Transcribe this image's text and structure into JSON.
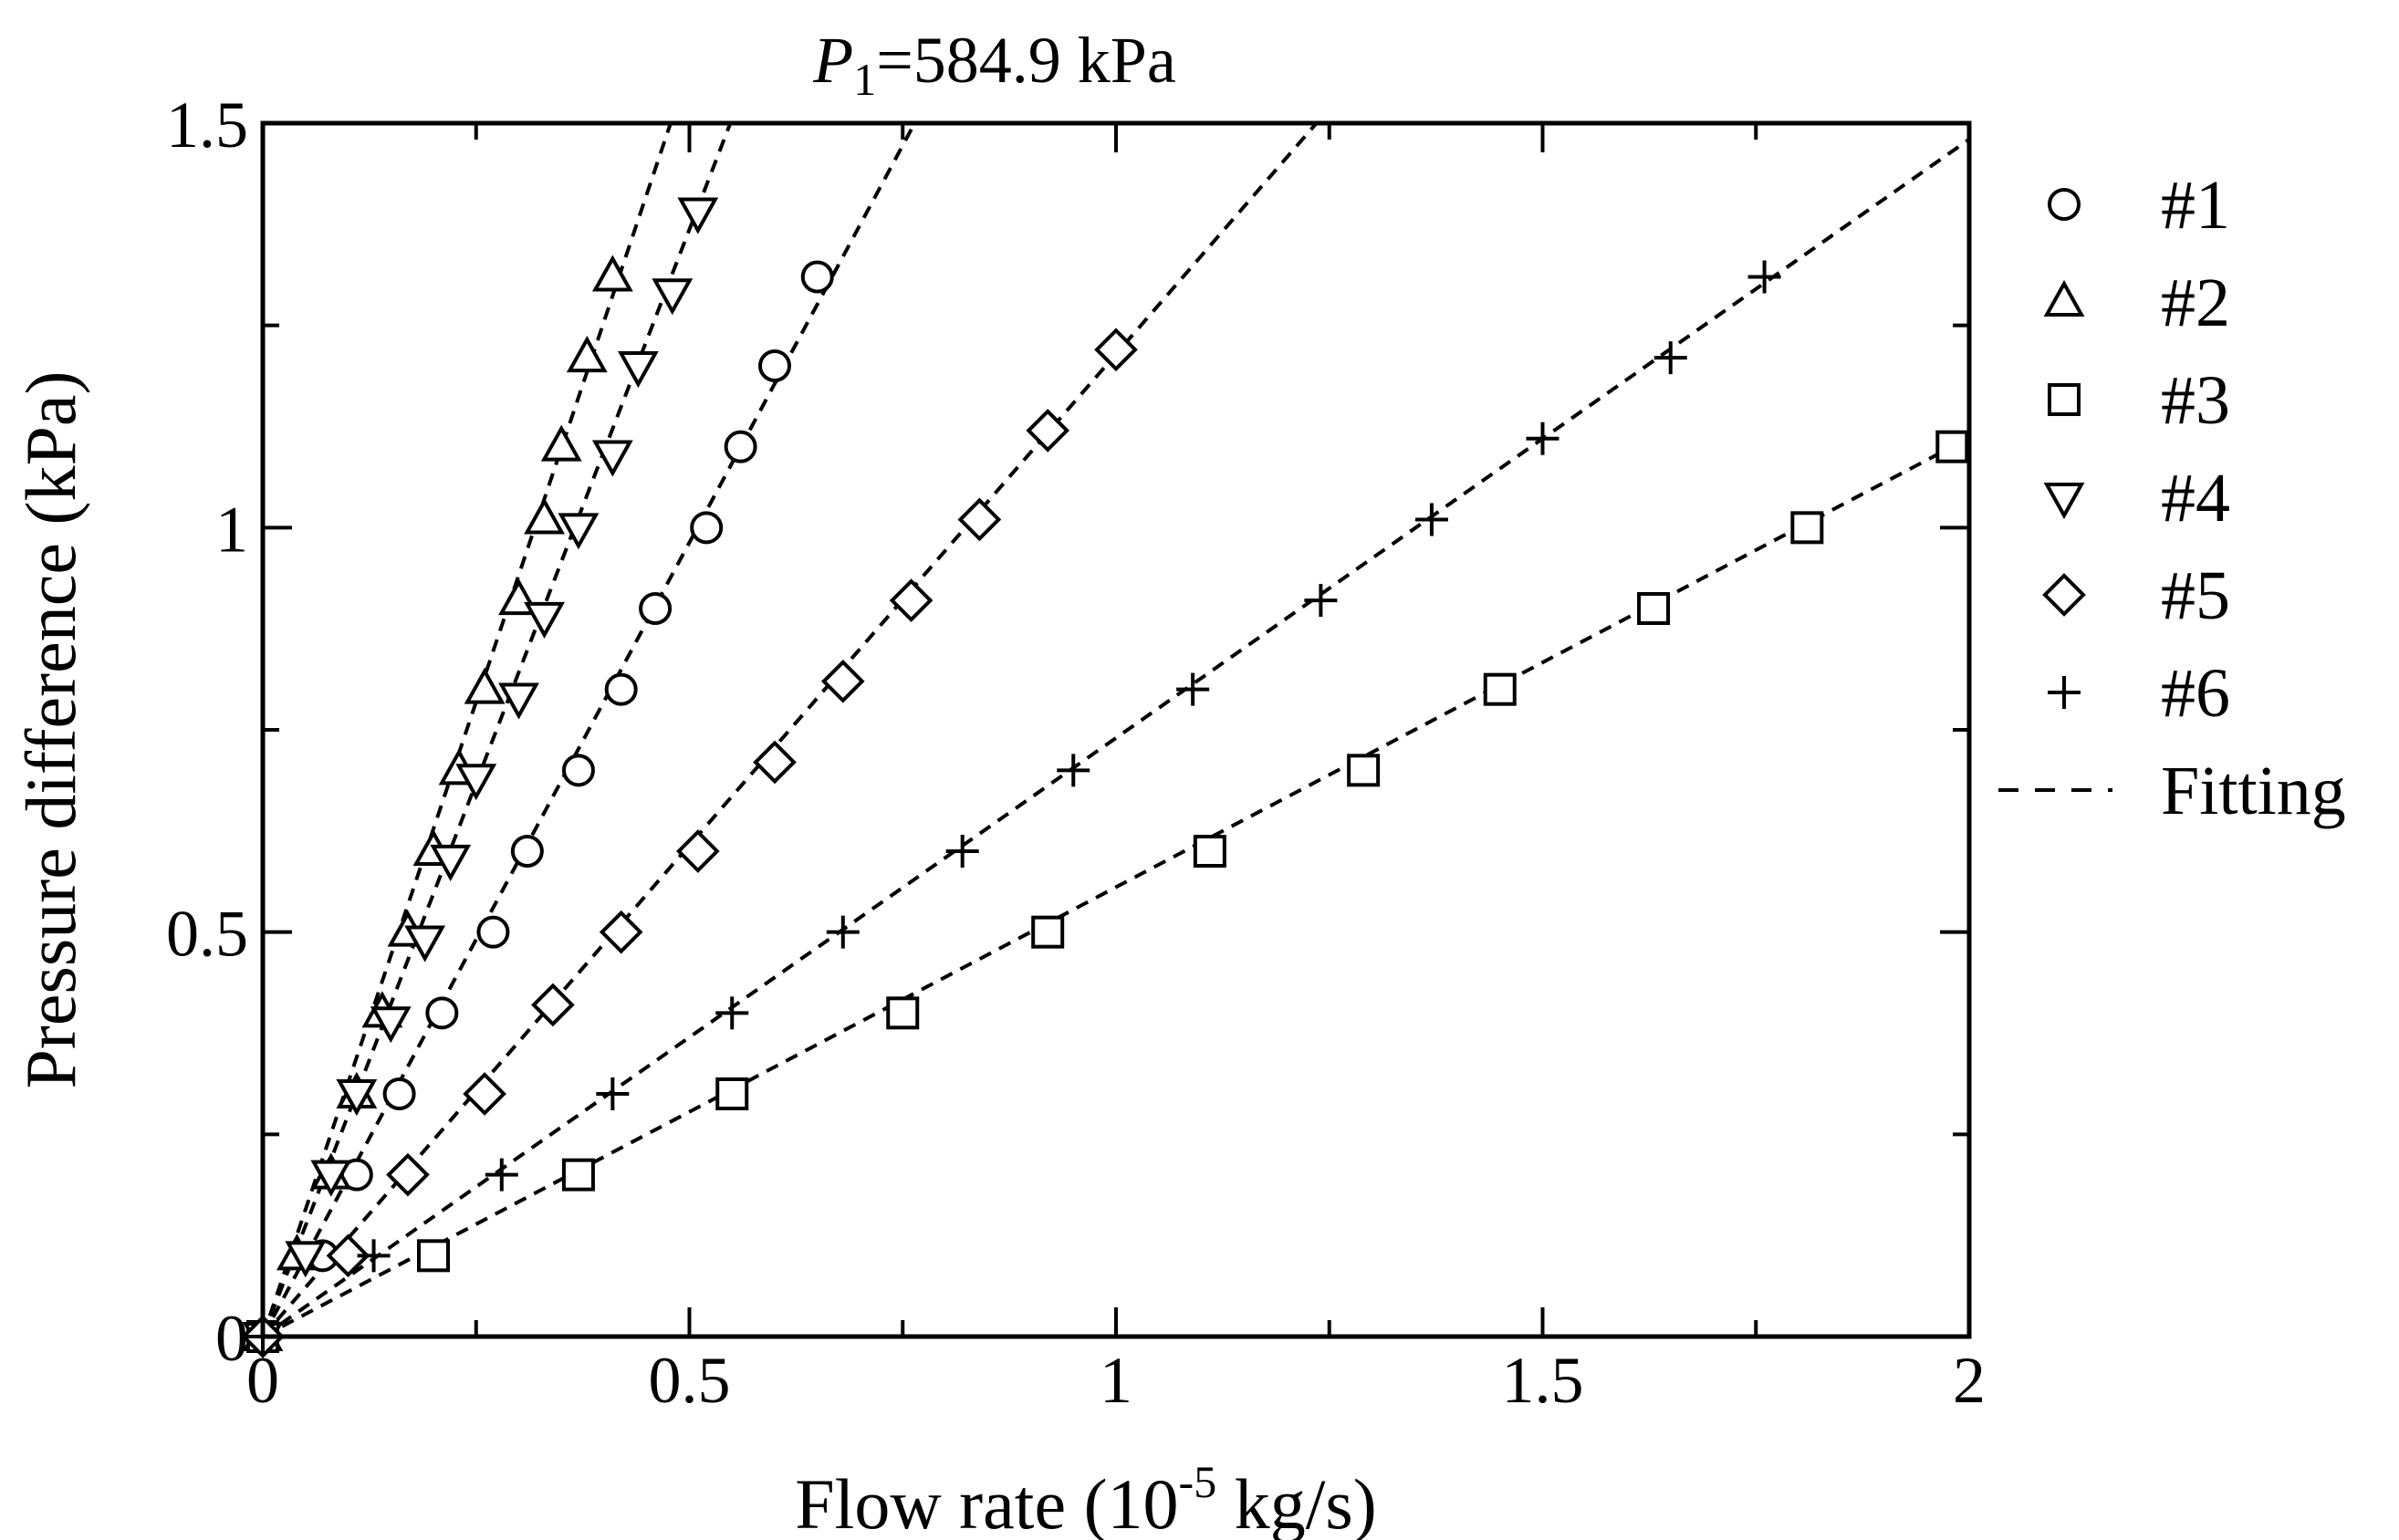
{
  "chart_data": {
    "type": "scatter",
    "title": {
      "symbol": "P",
      "subscript": "1",
      "text": "=584.9 kPa"
    },
    "xlabel": {
      "prefix": "Flow rate (10",
      "superscript": "-5",
      "suffix": " kg/s)"
    },
    "ylabel": "Pressure difference (kPa)",
    "xlim": [
      0,
      2
    ],
    "ylim": [
      0,
      1.5
    ],
    "xticks": [
      0,
      0.5,
      1,
      1.5,
      2
    ],
    "xtick_labels": [
      "0",
      "0.5",
      "1",
      "1.5",
      "2"
    ],
    "yticks": [
      0,
      0.5,
      1,
      1.5
    ],
    "ytick_labels": [
      "0",
      "0.5",
      "1",
      "1.5"
    ],
    "grid": false,
    "legend_position": "outside-right",
    "fitting_label": "Fitting",
    "series": [
      {
        "name": "#1",
        "marker": "circle",
        "x": [
          0,
          0.07,
          0.11,
          0.16,
          0.21,
          0.27,
          0.31,
          0.37,
          0.42,
          0.46,
          0.52,
          0.56,
          0.6,
          0.65
        ],
        "y": [
          0,
          0.1,
          0.2,
          0.3,
          0.4,
          0.5,
          0.6,
          0.7,
          0.8,
          0.9,
          1.0,
          1.1,
          1.2,
          1.31
        ],
        "fit": [
          [
            0,
            0
          ],
          [
            0.764,
            1.5
          ]
        ]
      },
      {
        "name": "#2",
        "marker": "triangle-up",
        "x": [
          0,
          0.04,
          0.08,
          0.11,
          0.14,
          0.17,
          0.2,
          0.23,
          0.26,
          0.3,
          0.33,
          0.35,
          0.38,
          0.41
        ],
        "y": [
          0,
          0.1,
          0.2,
          0.3,
          0.4,
          0.5,
          0.6,
          0.7,
          0.8,
          0.91,
          1.01,
          1.1,
          1.21,
          1.31
        ],
        "fit": [
          [
            0,
            0
          ],
          [
            0.478,
            1.5
          ]
        ]
      },
      {
        "name": "#3",
        "marker": "square",
        "x": [
          0,
          0.2,
          0.37,
          0.55,
          0.75,
          0.92,
          1.11,
          1.29,
          1.45,
          1.63,
          1.81,
          1.98
        ],
        "y": [
          0,
          0.1,
          0.2,
          0.3,
          0.4,
          0.5,
          0.6,
          0.7,
          0.8,
          0.9,
          1.0,
          1.1
        ],
        "fit": [
          [
            0,
            0
          ],
          [
            1.98,
            1.1
          ]
        ]
      },
      {
        "name": "#4",
        "marker": "triangle-down",
        "x": [
          0,
          0.05,
          0.08,
          0.11,
          0.15,
          0.19,
          0.22,
          0.25,
          0.3,
          0.33,
          0.37,
          0.41,
          0.44,
          0.48,
          0.51
        ],
        "y": [
          0,
          0.1,
          0.2,
          0.3,
          0.39,
          0.49,
          0.59,
          0.69,
          0.79,
          0.89,
          1.0,
          1.09,
          1.2,
          1.29,
          1.39
        ],
        "fit": [
          [
            0,
            0
          ],
          [
            0.548,
            1.5
          ]
        ]
      },
      {
        "name": "#5",
        "marker": "diamond",
        "x": [
          0,
          0.1,
          0.17,
          0.26,
          0.34,
          0.42,
          0.51,
          0.6,
          0.68,
          0.76,
          0.84,
          0.92,
          1.0
        ],
        "y": [
          0,
          0.1,
          0.2,
          0.3,
          0.41,
          0.5,
          0.6,
          0.71,
          0.81,
          0.91,
          1.01,
          1.12,
          1.22
        ],
        "fit": [
          [
            0,
            0
          ],
          [
            1.235,
            1.5
          ]
        ]
      },
      {
        "name": "#6",
        "marker": "plus",
        "x": [
          0,
          0.13,
          0.28,
          0.41,
          0.55,
          0.68,
          0.82,
          0.95,
          1.09,
          1.24,
          1.37,
          1.5,
          1.65,
          1.76
        ],
        "y": [
          0,
          0.1,
          0.2,
          0.3,
          0.4,
          0.5,
          0.6,
          0.7,
          0.8,
          0.91,
          1.01,
          1.11,
          1.21,
          1.31
        ],
        "fit": [
          [
            0,
            0
          ],
          [
            2.0,
            1.48
          ]
        ]
      }
    ]
  }
}
